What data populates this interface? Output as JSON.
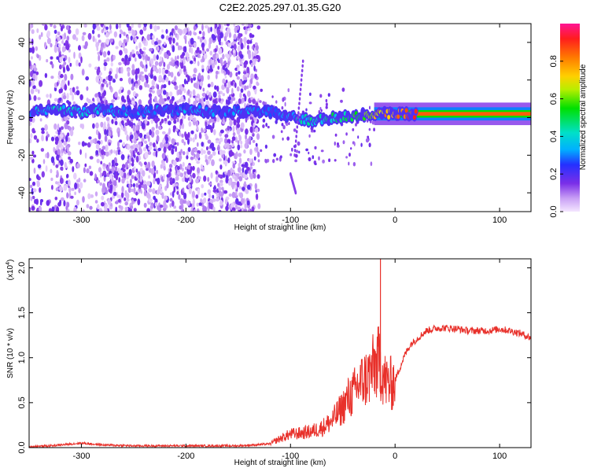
{
  "title": "C2E2.2025.297.01.35.G20",
  "chart_data": [
    {
      "type": "heatmap",
      "xlabel": "Height of straight line (km)",
      "ylabel": "Frequency (Hz)",
      "xlim": [
        -350,
        130
      ],
      "ylim": [
        -50,
        50
      ],
      "xticks": [
        -300,
        -200,
        -100,
        0,
        100
      ],
      "yticks": [
        -40,
        -20,
        0,
        20,
        40
      ],
      "colorbar": {
        "label": "Normalized spectral amplitude",
        "ticks": [
          0.0,
          0.2,
          0.4,
          0.6,
          0.8
        ],
        "range": [
          0,
          1
        ]
      },
      "signal_band": {
        "x": [
          -345,
          -320,
          -300,
          -280,
          -250,
          -200,
          -150,
          -120,
          -100,
          -80,
          -60,
          -40,
          -20,
          0,
          20,
          50,
          100,
          130
        ],
        "freq": [
          3,
          4,
          3,
          4,
          3,
          4,
          3,
          3,
          1,
          -2,
          0,
          1,
          2,
          2,
          2,
          2,
          2,
          2
        ],
        "amplitude": [
          0.35,
          0.4,
          0.4,
          0.35,
          0.3,
          0.3,
          0.3,
          0.3,
          0.35,
          0.4,
          0.45,
          0.5,
          0.7,
          0.8,
          0.85,
          0.85,
          0.85,
          0.85
        ]
      },
      "noise_extent": [
        -350,
        -130
      ]
    },
    {
      "type": "line",
      "xlabel": "Height of straight line (km)",
      "ylabel": "SNR (10 * v/v)",
      "yscale_label": "(x10",
      "yscale_exp": "4",
      "xlim": [
        -350,
        130
      ],
      "ylim": [
        0,
        2.1
      ],
      "xticks": [
        -300,
        -200,
        -100,
        0,
        100
      ],
      "yticks": [
        0.0,
        0.5,
        1.0,
        1.5,
        2.0
      ],
      "ytick_labels": [
        "0.0",
        "0.5",
        "1.0",
        "1.5",
        "2.0"
      ],
      "color": "#e8302a",
      "series": [
        {
          "x": [
            -350,
            -330,
            -310,
            -300,
            -280,
            -250,
            -200,
            -150,
            -120,
            -110,
            -100,
            -90,
            -80,
            -70,
            -60,
            -50,
            -45,
            -40,
            -35,
            -30,
            -25,
            -20,
            -15,
            -12,
            -10,
            -5,
            0,
            5,
            10,
            15,
            20,
            30,
            40,
            50,
            60,
            70,
            80,
            90,
            100,
            110,
            120,
            130
          ],
          "y": [
            0.01,
            0.02,
            0.04,
            0.05,
            0.03,
            0.02,
            0.02,
            0.02,
            0.04,
            0.1,
            0.15,
            0.16,
            0.18,
            0.22,
            0.3,
            0.45,
            0.55,
            0.6,
            0.7,
            0.75,
            0.8,
            0.9,
            0.95,
            0.85,
            0.75,
            0.7,
            0.75,
            0.9,
            1.05,
            1.15,
            1.2,
            1.3,
            1.33,
            1.33,
            1.32,
            1.3,
            1.3,
            1.3,
            1.32,
            1.3,
            1.27,
            1.22
          ],
          "spike": {
            "x": -14,
            "y": 2.15
          }
        }
      ]
    }
  ]
}
